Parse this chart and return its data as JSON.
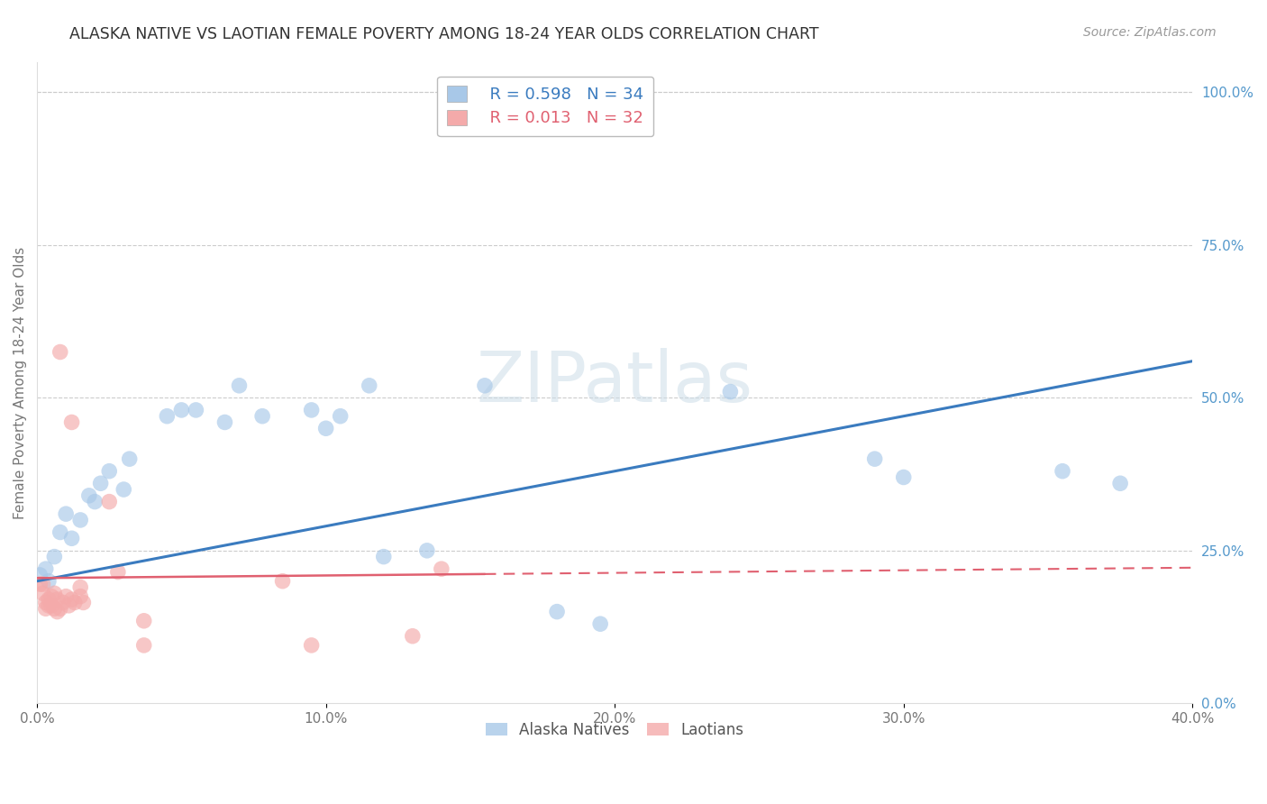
{
  "title": "ALASKA NATIVE VS LAOTIAN FEMALE POVERTY AMONG 18-24 YEAR OLDS CORRELATION CHART",
  "source": "Source: ZipAtlas.com",
  "ylabel": "Female Poverty Among 18-24 Year Olds",
  "xlim": [
    0,
    0.4
  ],
  "ylim": [
    0,
    1.05
  ],
  "legend_blue_r": "R = 0.598",
  "legend_blue_n": "N = 34",
  "legend_pink_r": "R = 0.013",
  "legend_pink_n": "N = 32",
  "blue_color": "#a8c8e8",
  "pink_color": "#f4aaaa",
  "blue_line_color": "#3a7bbf",
  "pink_line_color": "#e06070",
  "grid_color": "#cccccc",
  "title_color": "#333333",
  "axis_label_color": "#777777",
  "right_tick_color": "#5599cc",
  "watermark": "ZIPatlas",
  "blue_line_x0": 0.0,
  "blue_line_y0": 0.2,
  "blue_line_x1": 0.4,
  "blue_line_y1": 0.56,
  "pink_line_x0": 0.0,
  "pink_line_y0": 0.205,
  "pink_line_x1": 0.4,
  "pink_line_y1": 0.222,
  "alaska_points": [
    [
      0.001,
      0.21
    ],
    [
      0.003,
      0.22
    ],
    [
      0.004,
      0.2
    ],
    [
      0.006,
      0.24
    ],
    [
      0.008,
      0.28
    ],
    [
      0.01,
      0.31
    ],
    [
      0.012,
      0.27
    ],
    [
      0.015,
      0.3
    ],
    [
      0.018,
      0.34
    ],
    [
      0.02,
      0.33
    ],
    [
      0.022,
      0.36
    ],
    [
      0.025,
      0.38
    ],
    [
      0.03,
      0.35
    ],
    [
      0.032,
      0.4
    ],
    [
      0.045,
      0.47
    ],
    [
      0.05,
      0.48
    ],
    [
      0.055,
      0.48
    ],
    [
      0.065,
      0.46
    ],
    [
      0.07,
      0.52
    ],
    [
      0.078,
      0.47
    ],
    [
      0.095,
      0.48
    ],
    [
      0.1,
      0.45
    ],
    [
      0.105,
      0.47
    ],
    [
      0.115,
      0.52
    ],
    [
      0.12,
      0.24
    ],
    [
      0.135,
      0.25
    ],
    [
      0.155,
      0.52
    ],
    [
      0.18,
      0.15
    ],
    [
      0.195,
      0.13
    ],
    [
      0.24,
      0.51
    ],
    [
      0.29,
      0.4
    ],
    [
      0.3,
      0.37
    ],
    [
      0.355,
      0.38
    ],
    [
      0.375,
      0.36
    ]
  ],
  "laotian_points": [
    [
      0.001,
      0.195
    ],
    [
      0.002,
      0.195
    ],
    [
      0.002,
      0.18
    ],
    [
      0.003,
      0.165
    ],
    [
      0.003,
      0.155
    ],
    [
      0.004,
      0.17
    ],
    [
      0.004,
      0.16
    ],
    [
      0.005,
      0.175
    ],
    [
      0.005,
      0.16
    ],
    [
      0.006,
      0.18
    ],
    [
      0.006,
      0.155
    ],
    [
      0.007,
      0.17
    ],
    [
      0.007,
      0.15
    ],
    [
      0.008,
      0.155
    ],
    [
      0.009,
      0.165
    ],
    [
      0.01,
      0.175
    ],
    [
      0.011,
      0.16
    ],
    [
      0.012,
      0.17
    ],
    [
      0.013,
      0.165
    ],
    [
      0.015,
      0.19
    ],
    [
      0.015,
      0.175
    ],
    [
      0.016,
      0.165
    ],
    [
      0.008,
      0.575
    ],
    [
      0.012,
      0.46
    ],
    [
      0.025,
      0.33
    ],
    [
      0.028,
      0.215
    ],
    [
      0.037,
      0.135
    ],
    [
      0.037,
      0.095
    ],
    [
      0.085,
      0.2
    ],
    [
      0.095,
      0.095
    ],
    [
      0.13,
      0.11
    ],
    [
      0.14,
      0.22
    ]
  ]
}
